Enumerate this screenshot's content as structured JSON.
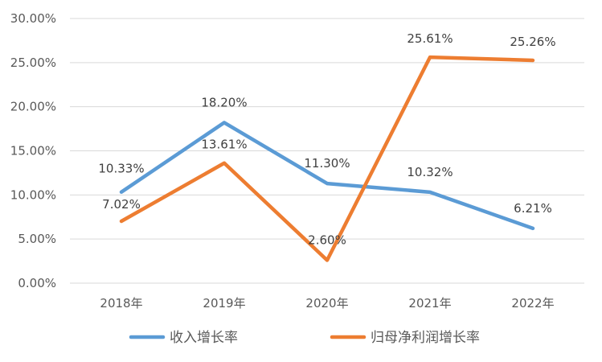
{
  "chart_data": {
    "type": "line",
    "categories": [
      "2018年",
      "2019年",
      "2020年",
      "2021年",
      "2022年"
    ],
    "series": [
      {
        "name": "收入增长率",
        "color": "#5B9BD5",
        "values": [
          10.33,
          18.2,
          11.3,
          10.32,
          6.21
        ],
        "labels": [
          "10.33%",
          "18.20%",
          "11.30%",
          "10.32%",
          "6.21%"
        ]
      },
      {
        "name": "归母净利润增长率",
        "color": "#ED7D31",
        "values": [
          7.02,
          13.61,
          2.6,
          25.61,
          25.26
        ],
        "labels": [
          "7.02%",
          "13.61%",
          "2.60%",
          "25.61%",
          "25.26%"
        ]
      }
    ],
    "yticks": [
      "0.00%",
      "5.00%",
      "10.00%",
      "15.00%",
      "20.00%",
      "25.00%",
      "30.00%"
    ],
    "ylim": [
      0,
      30
    ],
    "grid": true,
    "legend_position": "bottom",
    "title": "",
    "xlabel": "",
    "ylabel": ""
  }
}
